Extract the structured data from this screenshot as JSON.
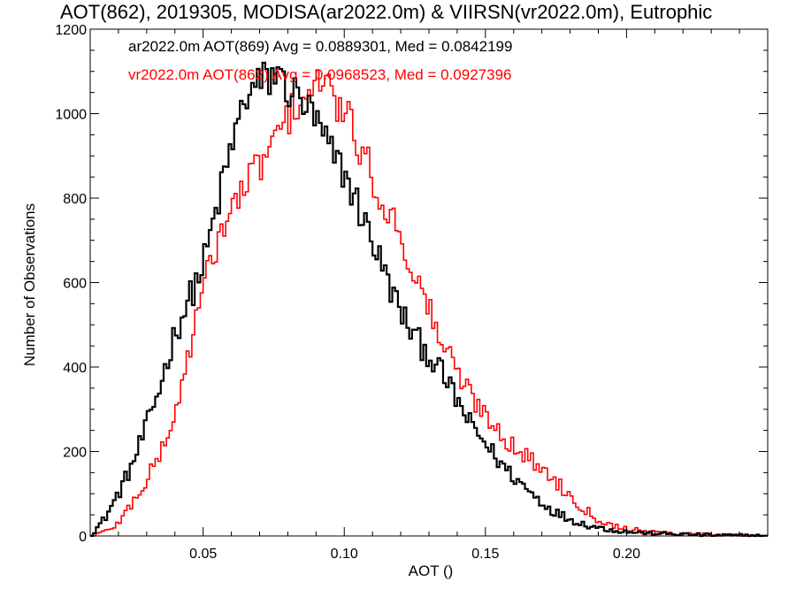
{
  "chart_data": {
    "type": "histogram",
    "title": "AOT(862), 2019305, MODISA(ar2022.0m) & VIIRSN(vr2022.0m), Eutrophic",
    "xlabel": "AOT ()",
    "ylabel": "Number of Observations",
    "xlim": [
      0.01,
      0.25
    ],
    "ylim": [
      0,
      1200
    ],
    "x_ticks": [
      "0.05",
      "0.10",
      "0.15",
      "0.20"
    ],
    "y_ticks": [
      "0",
      "200",
      "400",
      "600",
      "800",
      "1000",
      "1200"
    ],
    "bin_width": 0.001,
    "series": [
      {
        "name": "ar2022.0m AOT(869) Avg = 0.0889301, Med = 0.0842199",
        "color": "#000000",
        "peak_x": 0.0765,
        "peak_y": 1110,
        "shape_points": [
          [
            0.01,
            0
          ],
          [
            0.015,
            40
          ],
          [
            0.02,
            100
          ],
          [
            0.025,
            170
          ],
          [
            0.03,
            260
          ],
          [
            0.035,
            360
          ],
          [
            0.04,
            480
          ],
          [
            0.045,
            560
          ],
          [
            0.05,
            640
          ],
          [
            0.055,
            780
          ],
          [
            0.06,
            920
          ],
          [
            0.065,
            1040
          ],
          [
            0.07,
            1070
          ],
          [
            0.075,
            1090
          ],
          [
            0.08,
            1060
          ],
          [
            0.085,
            1030
          ],
          [
            0.09,
            980
          ],
          [
            0.095,
            910
          ],
          [
            0.1,
            860
          ],
          [
            0.105,
            780
          ],
          [
            0.11,
            700
          ],
          [
            0.115,
            610
          ],
          [
            0.12,
            530
          ],
          [
            0.125,
            470
          ],
          [
            0.13,
            430
          ],
          [
            0.135,
            380
          ],
          [
            0.14,
            320
          ],
          [
            0.145,
            260
          ],
          [
            0.15,
            220
          ],
          [
            0.155,
            175
          ],
          [
            0.16,
            140
          ],
          [
            0.165,
            110
          ],
          [
            0.17,
            80
          ],
          [
            0.175,
            55
          ],
          [
            0.18,
            40
          ],
          [
            0.185,
            28
          ],
          [
            0.19,
            20
          ],
          [
            0.195,
            14
          ],
          [
            0.2,
            10
          ],
          [
            0.21,
            6
          ],
          [
            0.22,
            4
          ],
          [
            0.23,
            2
          ],
          [
            0.24,
            1
          ],
          [
            0.25,
            0
          ]
        ]
      },
      {
        "name": "vr2022.0m AOT(862) Avg = 0.0968523, Med = 0.0927396",
        "color": "#ff0000",
        "peak_x": 0.0935,
        "peak_y": 1090,
        "shape_points": [
          [
            0.01,
            0
          ],
          [
            0.015,
            10
          ],
          [
            0.02,
            30
          ],
          [
            0.025,
            80
          ],
          [
            0.03,
            130
          ],
          [
            0.035,
            200
          ],
          [
            0.04,
            280
          ],
          [
            0.045,
            440
          ],
          [
            0.05,
            580
          ],
          [
            0.055,
            700
          ],
          [
            0.06,
            770
          ],
          [
            0.065,
            830
          ],
          [
            0.07,
            880
          ],
          [
            0.075,
            930
          ],
          [
            0.08,
            990
          ],
          [
            0.085,
            1040
          ],
          [
            0.09,
            1060
          ],
          [
            0.095,
            1050
          ],
          [
            0.1,
            1000
          ],
          [
            0.105,
            930
          ],
          [
            0.11,
            850
          ],
          [
            0.115,
            770
          ],
          [
            0.12,
            720
          ],
          [
            0.125,
            610
          ],
          [
            0.13,
            540
          ],
          [
            0.135,
            450
          ],
          [
            0.14,
            390
          ],
          [
            0.145,
            330
          ],
          [
            0.15,
            290
          ],
          [
            0.155,
            250
          ],
          [
            0.16,
            210
          ],
          [
            0.165,
            185
          ],
          [
            0.17,
            160
          ],
          [
            0.175,
            130
          ],
          [
            0.18,
            95
          ],
          [
            0.185,
            65
          ],
          [
            0.19,
            40
          ],
          [
            0.195,
            25
          ],
          [
            0.2,
            18
          ],
          [
            0.205,
            12
          ],
          [
            0.21,
            8
          ],
          [
            0.22,
            5
          ],
          [
            0.23,
            3
          ],
          [
            0.24,
            1
          ],
          [
            0.25,
            0
          ]
        ]
      }
    ]
  }
}
